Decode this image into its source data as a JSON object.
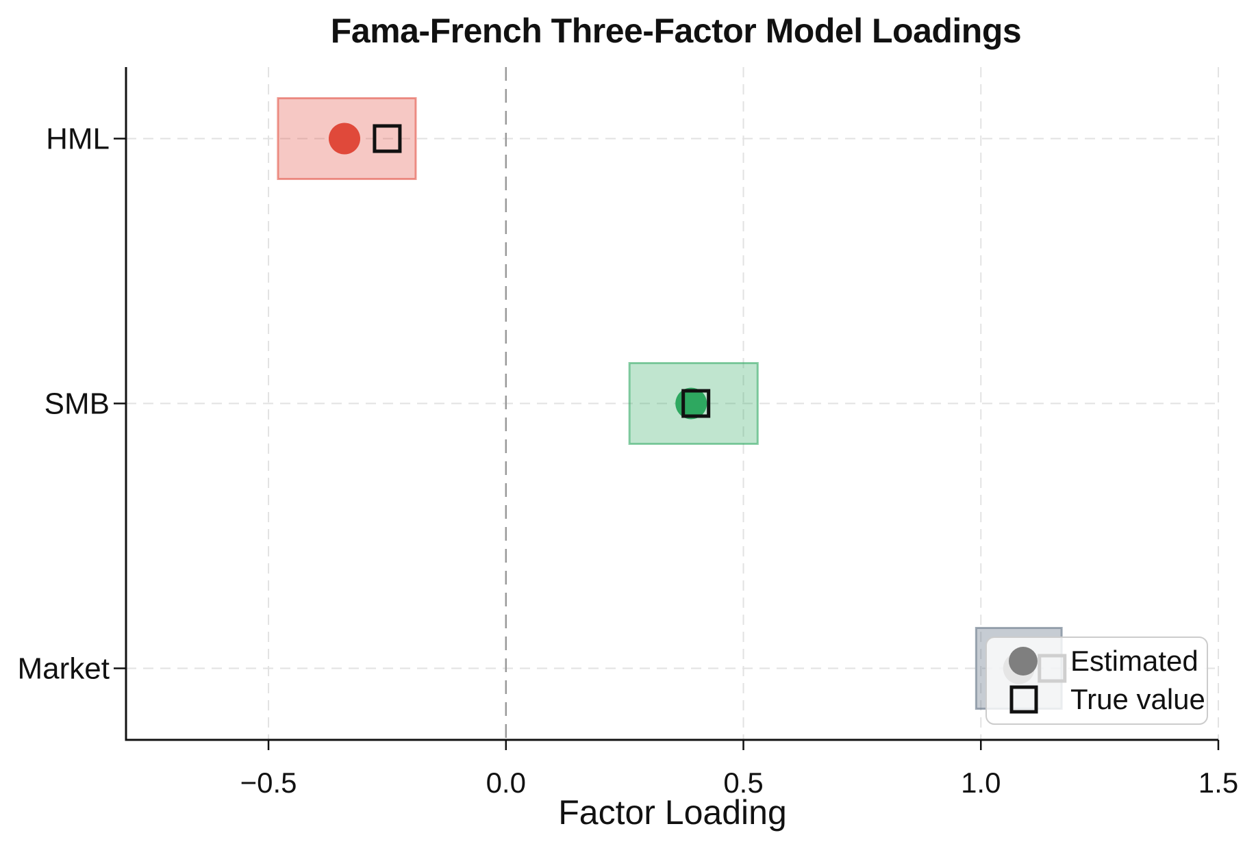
{
  "chart_data": {
    "type": "scatter",
    "title": "Fama-French Three-Factor Model Loadings",
    "xlabel": "Factor Loading",
    "ylabel": "",
    "xlim": [
      -0.8,
      1.5
    ],
    "x_ticks": [
      -0.5,
      0.0,
      0.5,
      1.0,
      1.5
    ],
    "x_tick_labels": [
      "−0.5",
      "0.0",
      "0.5",
      "1.0",
      "1.5"
    ],
    "categories": [
      "HML",
      "SMB",
      "Market"
    ],
    "grid": true,
    "zero_line_x": 0.0,
    "series": [
      {
        "factor": "HML",
        "estimated": -0.34,
        "true_value": -0.25,
        "ci_low": -0.48,
        "ci_high": -0.19,
        "color": "#e0493a",
        "band_color": "#e0493a",
        "band_fill_opacity": 0.3,
        "band_stroke_opacity": 0.55
      },
      {
        "factor": "SMB",
        "estimated": 0.39,
        "true_value": 0.4,
        "ci_low": 0.26,
        "ci_high": 0.53,
        "color": "#2ea860",
        "band_color": "#2ea860",
        "band_fill_opacity": 0.3,
        "band_stroke_opacity": 0.55
      },
      {
        "factor": "Market",
        "estimated": 1.08,
        "true_value": 1.15,
        "ci_low": 0.99,
        "ci_high": 1.17,
        "color": "#7f7f7f",
        "band_color": "#708090",
        "band_fill_opacity": 0.4,
        "band_stroke_opacity": 0.66
      }
    ],
    "legend": {
      "position": "lower right",
      "items": [
        {
          "label": "Estimated",
          "marker": "circle",
          "color": "#7f7f7f"
        },
        {
          "label": "True value",
          "marker": "open-square",
          "color": "#111111"
        }
      ]
    }
  },
  "styles": {
    "grid_color": "#e2e2e2",
    "zero_line_color": "#999999",
    "marker_outline_color": "#111111",
    "axis_color": "#111111"
  }
}
